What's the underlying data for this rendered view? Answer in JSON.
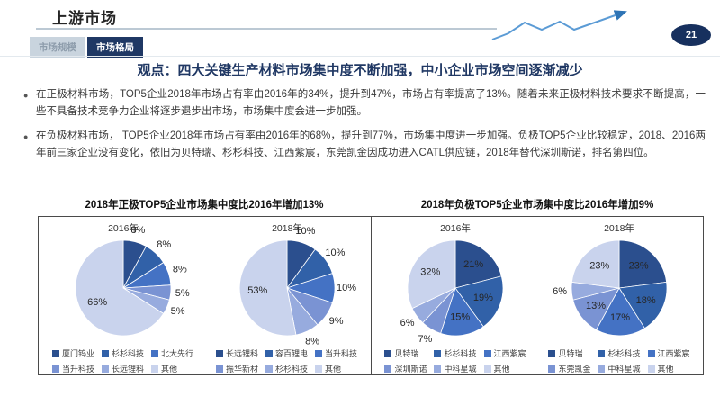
{
  "header": {
    "title": "上游市场",
    "page_number": "21",
    "tabs": [
      {
        "label": "市场规模",
        "active": false
      },
      {
        "label": "市场格局",
        "active": true
      }
    ]
  },
  "headline": "观点：四大关键生产材料市场集中度不断加强，中小企业市场空间逐渐减少",
  "bullets": [
    "在正极材料市场，TOP5企业2018年市场占有率由2016年的34%，提升到47%，市场占有率提高了13%。随着未来正极材料技术要求不断提高，一些不具备技术竞争力企业将逐步退步出市场，市场集中度会进一步加强。",
    "在负极材料市场， TOP5企业2018年市场占有率由2016年的68%，提升到77%，市场集中度进一步加强。负极TOP5企业比较稳定，2018、2016两年前三家企业没有变化，依旧为贝特瑞、杉杉科技、江西紫宸，东莞凯金因成功进入CATL供应链，2018年替代深圳斯诺，排名第四位。"
  ],
  "palette": [
    "#2B4F8E",
    "#3161A8",
    "#4472C4",
    "#7A93D3",
    "#97ABDE",
    "#C9D3ED"
  ],
  "accent_colors": {
    "navy": "#1F3864",
    "trend_line": "#5B9BD5",
    "badge": "#17305E"
  },
  "chart_data": [
    {
      "type": "pie",
      "panel": "cathode",
      "title": "2018年正极TOP5企业市场集中度比2016年增加13%",
      "legend_position": "bottom",
      "pies": [
        {
          "label": "2016年",
          "categories": [
            "厦门钨业",
            "杉杉科技",
            "北大先行",
            "当升科技",
            "长远锂科",
            "其他"
          ],
          "values": [
            8,
            8,
            8,
            5,
            5,
            66
          ]
        },
        {
          "label": "2018年",
          "categories": [
            "长远锂科",
            "容百锂电",
            "当升科技",
            "振华新材",
            "杉杉科技",
            "其他"
          ],
          "values": [
            10,
            10,
            10,
            9,
            8,
            53
          ]
        }
      ]
    },
    {
      "type": "pie",
      "panel": "anode",
      "title": "2018年负极TOP5企业市场集中度比2016年增加9%",
      "legend_position": "bottom",
      "pies": [
        {
          "label": "2016年",
          "categories": [
            "贝特瑞",
            "杉杉科技",
            "江西紫宸",
            "深圳斯诺",
            "中科星城",
            "其他"
          ],
          "values": [
            21,
            19,
            15,
            7,
            6,
            32
          ]
        },
        {
          "label": "2018年",
          "categories": [
            "贝特瑞",
            "杉杉科技",
            "江西紫宸",
            "东莞凯金",
            "中科星城",
            "其他"
          ],
          "values": [
            23,
            18,
            17,
            13,
            6,
            23
          ]
        }
      ]
    }
  ]
}
